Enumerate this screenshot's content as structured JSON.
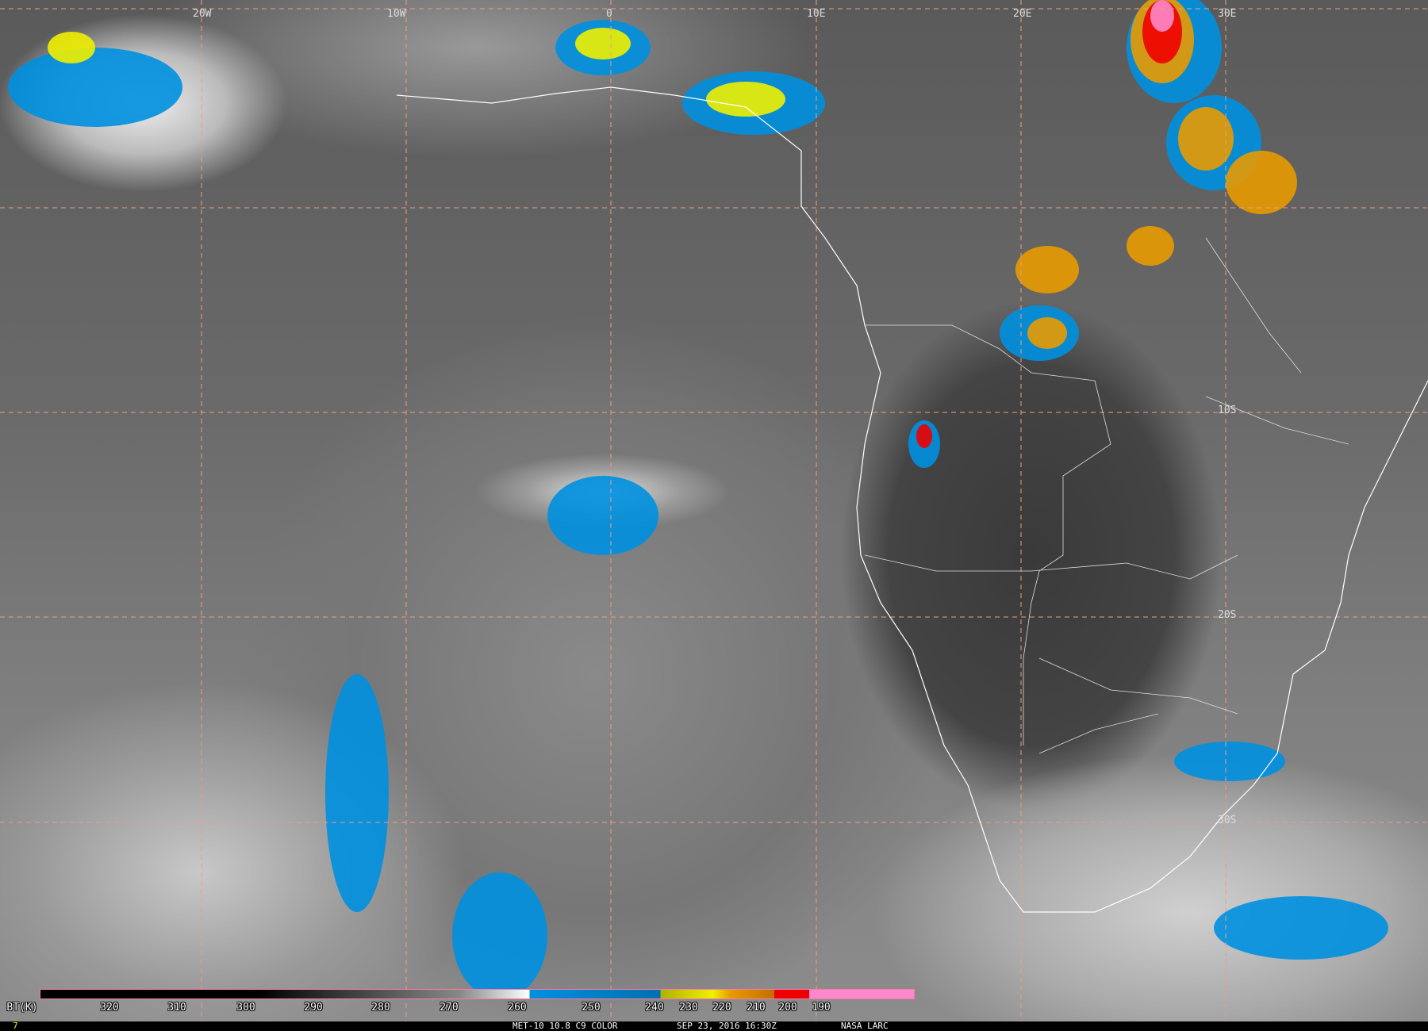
{
  "title": "MET-10 10.8 C9 COLOR",
  "timestamp": "SEP 23, 2016 16:30Z",
  "credit": "NASA LARC",
  "frame_number": "7",
  "longitude_labels": [
    "20W",
    "10W",
    "0",
    "10E",
    "20E",
    "30E"
  ],
  "latitude_labels": [
    "10S",
    "20S",
    "30S"
  ],
  "colorbar": {
    "label": "BT(K)",
    "ticks": [
      "320",
      "310",
      "300",
      "290",
      "280",
      "270",
      "260",
      "250",
      "240",
      "230",
      "220",
      "210",
      "200",
      "190"
    ],
    "colors": {
      "cold_pink": "#ff88cc",
      "red": "#ee0000",
      "orange": "#e89a00",
      "yellow": "#f0f000",
      "olive": "#b0b000",
      "blue": "#0090e0",
      "white": "#ffffff",
      "black": "#000000"
    }
  }
}
